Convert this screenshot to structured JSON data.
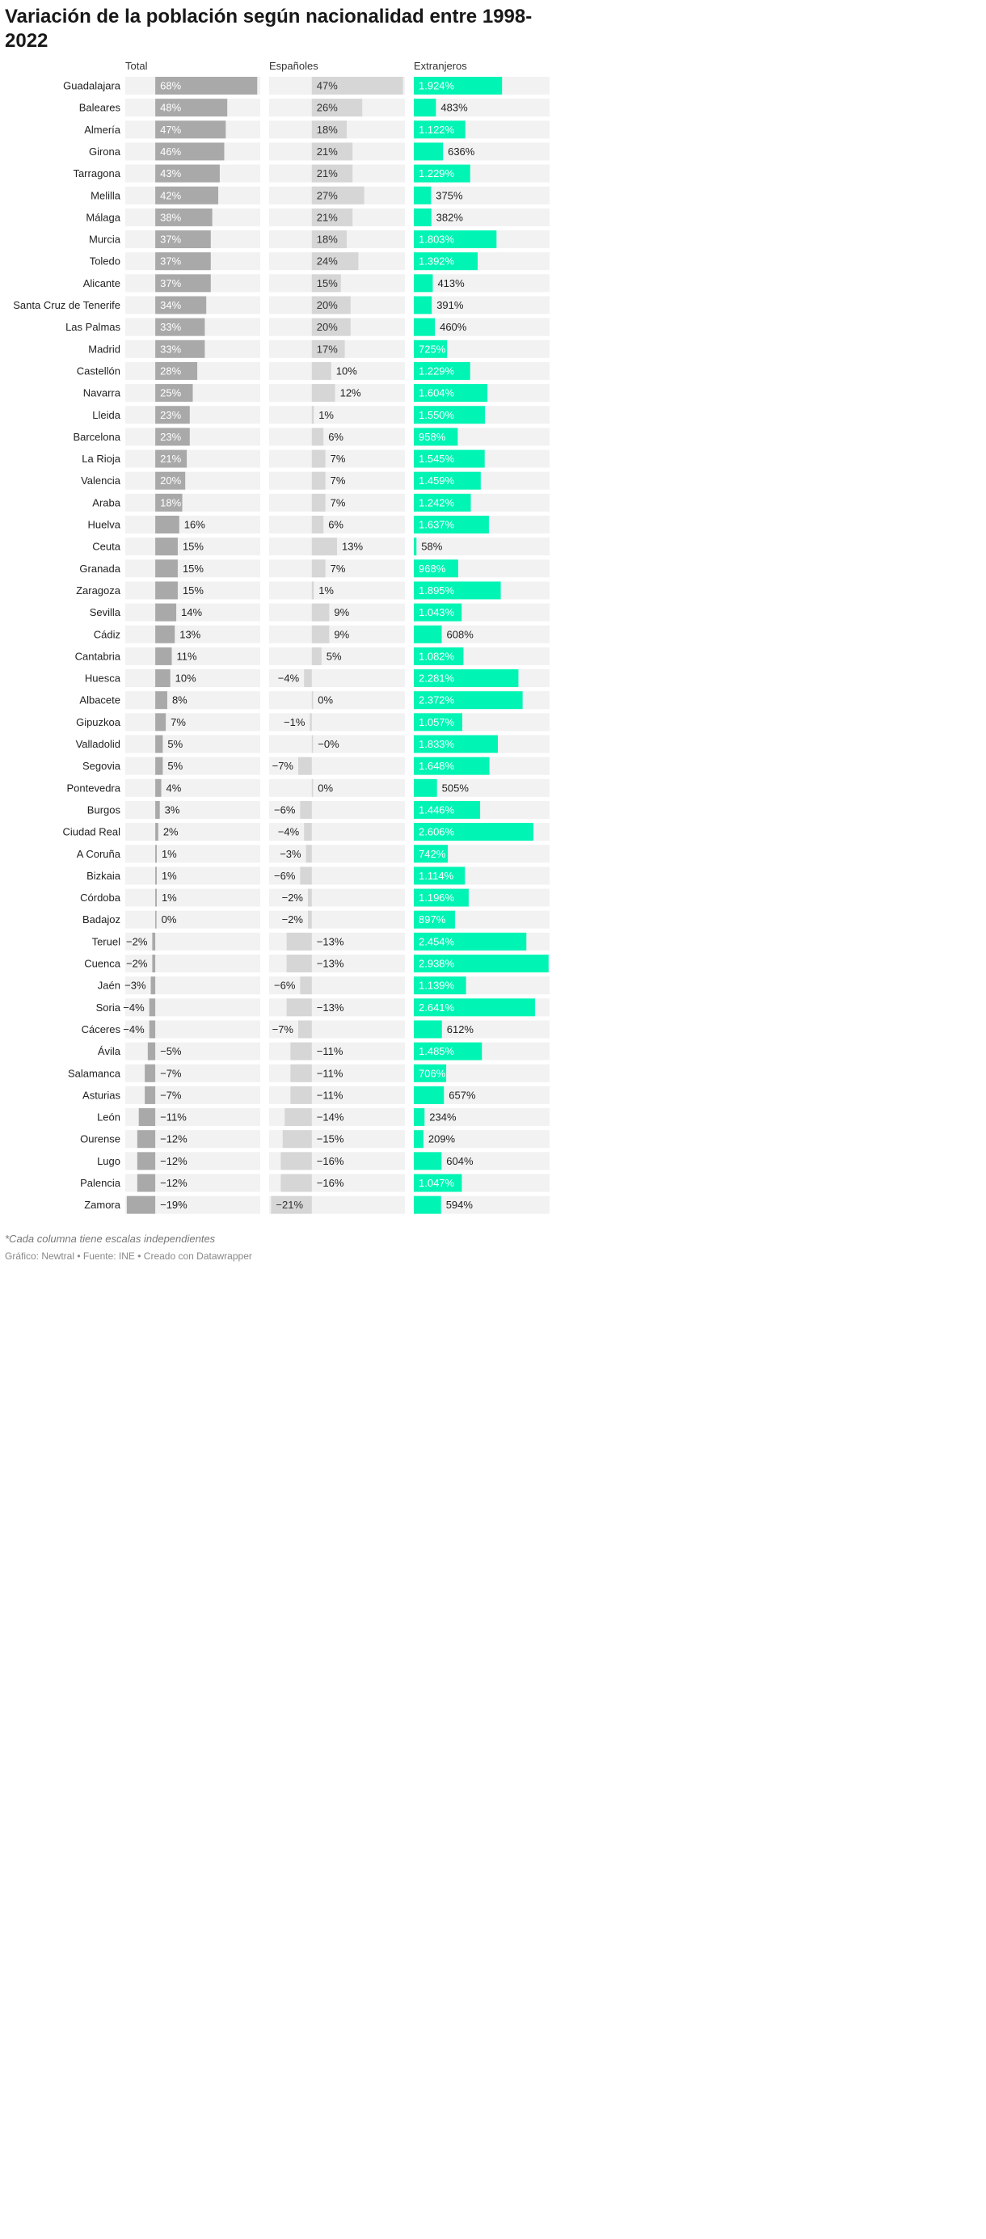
{
  "title": "Variación de la población según nacionalidad entre 1998-2022",
  "note": "*Cada columna tiene escalas independientes",
  "source": "Gráfico: Newtral • Fuente: INE • Creado con Datawrapper",
  "colors": {
    "total_bar": "#a9a9a9",
    "espanoles_bar": "#d6d6d6",
    "extranjeros_bar": "#00f5b4",
    "row_background": "#f2f2f2"
  },
  "chart_data": {
    "type": "bar",
    "orientation": "horizontal",
    "value_unit": "%",
    "independent_scales": true,
    "columns": [
      "Total",
      "Españoles",
      "Extranjeros"
    ],
    "categories": [
      "Guadalajara",
      "Baleares",
      "Almería",
      "Girona",
      "Tarragona",
      "Melilla",
      "Málaga",
      "Murcia",
      "Toledo",
      "Alicante",
      "Santa Cruz de Tenerife",
      "Las Palmas",
      "Madrid",
      "Castellón",
      "Navarra",
      "Lleida",
      "Barcelona",
      "La Rioja",
      "Valencia",
      "Araba",
      "Huelva",
      "Ceuta",
      "Granada",
      "Zaragoza",
      "Sevilla",
      "Cádiz",
      "Cantabria",
      "Huesca",
      "Albacete",
      "Gipuzkoa",
      "Valladolid",
      "Segovia",
      "Pontevedra",
      "Burgos",
      "Ciudad Real",
      "A Coruña",
      "Bizkaia",
      "Córdoba",
      "Badajoz",
      "Teruel",
      "Cuenca",
      "Jaén",
      "Soria",
      "Cáceres",
      "Ávila",
      "Salamanca",
      "Asturias",
      "León",
      "Ourense",
      "Lugo",
      "Palencia",
      "Zamora"
    ],
    "series": [
      {
        "name": "Total",
        "values": [
          68,
          48,
          47,
          46,
          43,
          42,
          38,
          37,
          37,
          37,
          34,
          33,
          33,
          28,
          25,
          23,
          23,
          21,
          20,
          18,
          16,
          15,
          15,
          15,
          14,
          13,
          11,
          10,
          8,
          7,
          5,
          5,
          4,
          3,
          2,
          1,
          1,
          1,
          0,
          -2,
          -2,
          -3,
          -4,
          -4,
          -5,
          -7,
          -7,
          -11,
          -12,
          -12,
          -12,
          -19
        ],
        "labels": [
          "68%",
          "48%",
          "47%",
          "46%",
          "43%",
          "42%",
          "38%",
          "37%",
          "37%",
          "37%",
          "34%",
          "33%",
          "33%",
          "28%",
          "25%",
          "23%",
          "23%",
          "21%",
          "20%",
          "18%",
          "16%",
          "15%",
          "15%",
          "15%",
          "14%",
          "13%",
          "11%",
          "10%",
          "8%",
          "7%",
          "5%",
          "5%",
          "4%",
          "3%",
          "2%",
          "1%",
          "1%",
          "1%",
          "0%",
          "−2%",
          "−2%",
          "−3%",
          "−4%",
          "−4%",
          "−5%",
          "−7%",
          "−7%",
          "−11%",
          "−12%",
          "−12%",
          "−12%",
          "−19%"
        ]
      },
      {
        "name": "Españoles",
        "values": [
          47,
          26,
          18,
          21,
          21,
          27,
          21,
          18,
          24,
          15,
          20,
          20,
          17,
          10,
          12,
          1,
          6,
          7,
          7,
          7,
          6,
          13,
          7,
          1,
          9,
          9,
          5,
          -4,
          0,
          -1,
          0,
          -7,
          0,
          -6,
          -4,
          -3,
          -6,
          -2,
          -2,
          -13,
          -13,
          -6,
          -13,
          -7,
          -11,
          -11,
          -11,
          -14,
          -15,
          -16,
          -16,
          -21
        ],
        "labels": [
          "47%",
          "26%",
          "18%",
          "21%",
          "21%",
          "27%",
          "21%",
          "18%",
          "24%",
          "15%",
          "20%",
          "20%",
          "17%",
          "10%",
          "12%",
          "1%",
          "6%",
          "7%",
          "7%",
          "7%",
          "6%",
          "13%",
          "7%",
          "1%",
          "9%",
          "9%",
          "5%",
          "−4%",
          "0%",
          "−1%",
          "−0%",
          "−7%",
          "0%",
          "−6%",
          "−4%",
          "−3%",
          "−6%",
          "−2%",
          "−2%",
          "−13%",
          "−13%",
          "−6%",
          "−13%",
          "−7%",
          "−11%",
          "−11%",
          "−11%",
          "−14%",
          "−15%",
          "−16%",
          "−16%",
          "−21%"
        ]
      },
      {
        "name": "Extranjeros",
        "values": [
          1924,
          483,
          1122,
          636,
          1229,
          375,
          382,
          1803,
          1392,
          413,
          391,
          460,
          725,
          1229,
          1604,
          1550,
          958,
          1545,
          1459,
          1242,
          1637,
          58,
          968,
          1895,
          1043,
          608,
          1082,
          2281,
          2372,
          1057,
          1833,
          1648,
          505,
          1446,
          2606,
          742,
          1114,
          1196,
          897,
          2454,
          2938,
          1139,
          2641,
          612,
          1485,
          706,
          657,
          234,
          209,
          604,
          1047,
          594
        ],
        "labels": [
          "1.924%",
          "483%",
          "1.122%",
          "636%",
          "1.229%",
          "375%",
          "382%",
          "1.803%",
          "1.392%",
          "413%",
          "391%",
          "460%",
          "725%",
          "1.229%",
          "1.604%",
          "1.550%",
          "958%",
          "1.545%",
          "1.459%",
          "1.242%",
          "1.637%",
          "58%",
          "968%",
          "1.895%",
          "1.043%",
          "608%",
          "1.082%",
          "2.281%",
          "2.372%",
          "1.057%",
          "1.833%",
          "1.648%",
          "505%",
          "1.446%",
          "2.606%",
          "742%",
          "1.114%",
          "1.196%",
          "897%",
          "2.454%",
          "2.938%",
          "1.139%",
          "2.641%",
          "612%",
          "1.485%",
          "706%",
          "657%",
          "234%",
          "209%",
          "604%",
          "1.047%",
          "594%"
        ]
      }
    ]
  }
}
